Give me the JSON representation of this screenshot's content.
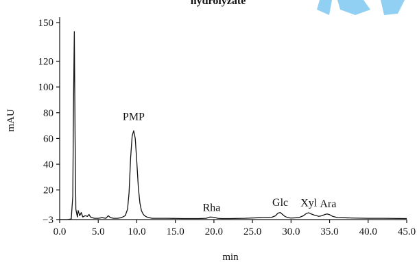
{
  "chart_data": {
    "type": "line",
    "title": "hydrolyzate",
    "xlabel": "min",
    "ylabel": "mAU",
    "xlim": [
      0,
      45
    ],
    "ylim": [
      -3,
      150
    ],
    "x_ticks": [
      {
        "v": 0,
        "label": "0.0"
      },
      {
        "v": 5,
        "label": "5.0"
      },
      {
        "v": 10,
        "label": "10.0"
      },
      {
        "v": 15,
        "label": "15.0"
      },
      {
        "v": 20,
        "label": "20.0"
      },
      {
        "v": 25,
        "label": "25.0"
      },
      {
        "v": 30,
        "label": "30.0"
      },
      {
        "v": 35,
        "label": "35.0"
      },
      {
        "v": 40,
        "label": "40.0"
      },
      {
        "v": 45,
        "label": "45.0"
      }
    ],
    "y_ticks": [
      {
        "v": -3,
        "label": "−3"
      },
      {
        "v": 20,
        "label": "20"
      },
      {
        "v": 40,
        "label": "40"
      },
      {
        "v": 60,
        "label": "60"
      },
      {
        "v": 80,
        "label": "80"
      },
      {
        "v": 100,
        "label": "100"
      },
      {
        "v": 120,
        "label": "120"
      },
      {
        "v": 150,
        "label": "150"
      }
    ],
    "grid": false,
    "legend": "none",
    "line_color": "#111111",
    "series": [
      {
        "x": [
          0.0,
          1.0,
          1.5,
          1.7,
          1.8,
          1.9,
          2.0,
          2.1,
          2.2,
          2.3,
          2.4,
          2.6,
          2.8,
          3.0,
          3.3,
          3.6,
          3.8,
          4.0,
          4.2,
          4.5,
          5.0,
          5.5,
          6.0,
          6.3,
          6.6,
          7.0,
          7.5,
          8.0,
          8.5,
          8.8,
          9.0,
          9.2,
          9.4,
          9.6,
          9.8,
          10.0,
          10.2,
          10.4,
          10.6,
          10.8,
          11.0,
          11.3,
          11.6,
          12.0,
          13.0,
          14.0,
          16.0,
          18.0,
          19.0,
          19.5,
          20.0,
          20.5,
          21.0,
          22.0,
          24.0,
          26.0,
          27.5,
          28.0,
          28.3,
          28.6,
          28.9,
          29.2,
          29.6,
          30.0,
          31.0,
          31.6,
          32.0,
          32.3,
          32.6,
          33.0,
          33.6,
          34.0,
          34.4,
          34.7,
          35.0,
          35.4,
          36.0,
          38.0,
          40.0,
          42.0,
          45.0
        ],
        "y": [
          -3,
          -3,
          -2.5,
          15,
          90,
          143,
          60,
          5,
          2,
          -1,
          4,
          0,
          2.5,
          -1,
          0,
          -0.5,
          1,
          -1,
          -1.5,
          -2,
          -2,
          -1.5,
          -2,
          0,
          -1.5,
          -2,
          -2,
          -1.5,
          0,
          5,
          18,
          45,
          62,
          66,
          60,
          42,
          22,
          10,
          4,
          1.5,
          0,
          -1,
          -1.5,
          -2,
          -2,
          -2,
          -2.2,
          -2.2,
          -2,
          -1,
          -1.2,
          -2,
          -2.2,
          -2.2,
          -2,
          -1.5,
          -1.2,
          0,
          2,
          2.5,
          1,
          -0.5,
          -1.5,
          -1.8,
          -1.5,
          0,
          1.8,
          2.3,
          1.4,
          0.5,
          -0.5,
          0,
          1,
          1.4,
          0.8,
          -0.5,
          -1.4,
          -1.8,
          -2,
          -2,
          -2.2
        ]
      }
    ],
    "annotations": [
      {
        "text": "PMP",
        "x": 9.6,
        "y": 71
      },
      {
        "text": "Rha",
        "x": 19.7,
        "y": 0.5
      },
      {
        "text": "Glc",
        "x": 28.6,
        "y": 4.5
      },
      {
        "text": "Xyl",
        "x": 32.3,
        "y": 4.3
      },
      {
        "text": "Ara",
        "x": 34.8,
        "y": 3.3
      }
    ]
  }
}
